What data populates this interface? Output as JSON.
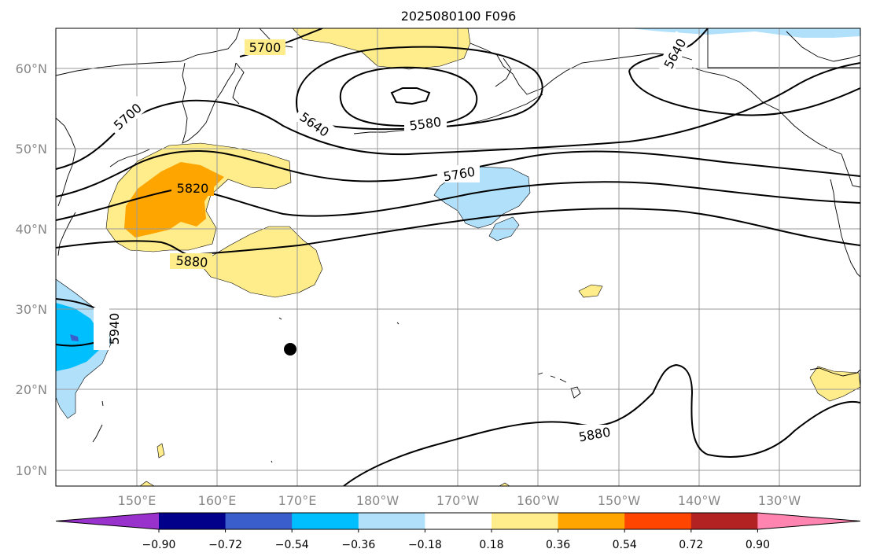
{
  "title": "2025080100 F096",
  "lon_ticks": [
    "150°E",
    "160°E",
    "170°E",
    "180°W",
    "170°W",
    "160°W",
    "150°W",
    "140°W",
    "130°W"
  ],
  "lat_ticks": [
    "60°N",
    "50°N",
    "40°N",
    "30°N",
    "20°N",
    "10°N"
  ],
  "contour_labels": [
    "5700",
    "5700",
    "5640",
    "5640",
    "5580",
    "5760",
    "5820",
    "5880",
    "5880",
    "5940"
  ],
  "colorbar": {
    "ticks": [
      "−0.90",
      "−0.72",
      "−0.54",
      "−0.36",
      "−0.18",
      "0.18",
      "0.36",
      "0.54",
      "0.72",
      "0.90"
    ],
    "colors": [
      "#9932cc",
      "#00008b",
      "#3a5fcd",
      "#00bfff",
      "#b0e0fa",
      "#ffffff",
      "#ffec8b",
      "#ffa500",
      "#ff4500",
      "#b22222",
      "#ff85b0"
    ]
  },
  "shading_colors": {
    "light_yellow": "#ffec8b",
    "orange": "#ffa500",
    "light_blue": "#b0e0fa",
    "deep_sky_blue": "#00bfff",
    "medium_blue": "#3a5fcd"
  }
}
